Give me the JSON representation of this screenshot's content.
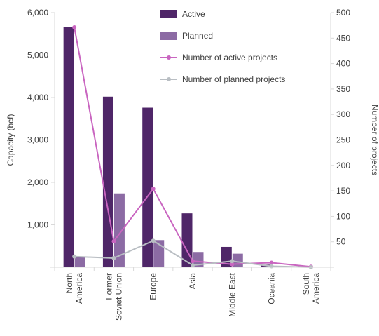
{
  "chart_data": {
    "type": "bar",
    "categories": [
      [
        "North",
        "America"
      ],
      [
        "Former",
        "Soviet Union"
      ],
      [
        "Europe"
      ],
      [
        "Asia"
      ],
      [
        "Middle East"
      ],
      [
        "Oceania"
      ],
      [
        "South",
        "America"
      ]
    ],
    "series": [
      {
        "name": "Active",
        "kind": "bar",
        "axis": "left",
        "color": "#4f2668",
        "values": [
          5660,
          4020,
          3760,
          1270,
          480,
          60,
          10
        ]
      },
      {
        "name": "Planned",
        "kind": "bar",
        "axis": "left",
        "color": "#8c6ba4",
        "values": [
          240,
          1740,
          640,
          360,
          320,
          20,
          10
        ]
      },
      {
        "name": "Number of active projects",
        "kind": "line",
        "axis": "right",
        "color": "#c965c0",
        "values": [
          471,
          51,
          154,
          12,
          6,
          9,
          1
        ]
      },
      {
        "name": "Number of planned projects",
        "kind": "line",
        "axis": "right",
        "color": "#b9bec3",
        "values": [
          21,
          18,
          52,
          4,
          12,
          2,
          0
        ]
      }
    ],
    "y_left": {
      "label": "Capacity (bcf)",
      "ylim": [
        0,
        6000
      ],
      "ticks": [
        0,
        1000,
        2000,
        3000,
        4000,
        5000,
        6000
      ],
      "tick_labels": [
        "",
        "1,000",
        "2,000",
        "3,000",
        "4,000",
        "5,000",
        "6,000"
      ]
    },
    "y_right": {
      "label": "Number of projects",
      "ylim": [
        0,
        500
      ],
      "ticks": [
        0,
        50,
        100,
        150,
        200,
        250,
        300,
        350,
        400,
        450,
        500
      ],
      "tick_labels": [
        "",
        "50",
        "100",
        "150",
        "200",
        "250",
        "300",
        "350",
        "400",
        "450",
        "500"
      ]
    },
    "grid": false,
    "legend_position": "top-right, inside plot"
  }
}
